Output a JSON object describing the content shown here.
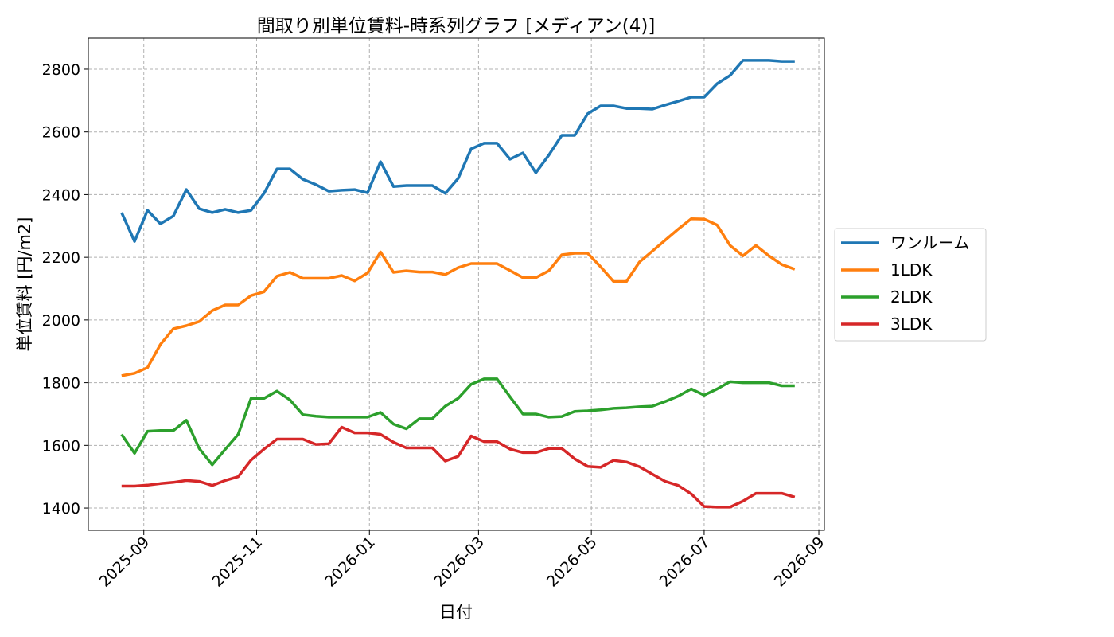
{
  "chart_data": {
    "type": "line",
    "title": "間取り別単位賃料-時系列グラフ [メディアン(4)]",
    "xlabel": "日付",
    "ylabel": "単位賃料 [円/m2]",
    "x": [
      "2025-08-20",
      "2025-08-27",
      "2025-09-03",
      "2025-09-10",
      "2025-09-17",
      "2025-09-24",
      "2025-10-01",
      "2025-10-08",
      "2025-10-15",
      "2025-10-22",
      "2025-10-29",
      "2025-11-05",
      "2025-11-12",
      "2025-11-19",
      "2025-11-26",
      "2025-12-03",
      "2025-12-10",
      "2025-12-17",
      "2025-12-24",
      "2025-12-31",
      "2026-01-07",
      "2026-01-14",
      "2026-01-21",
      "2026-01-28",
      "2026-02-04",
      "2026-02-11",
      "2026-02-18",
      "2026-02-25",
      "2026-03-04",
      "2026-03-11",
      "2026-03-18",
      "2026-03-25",
      "2026-04-01",
      "2026-04-08",
      "2026-04-15",
      "2026-04-22",
      "2026-04-29",
      "2026-05-06",
      "2026-05-13",
      "2026-05-20",
      "2026-05-27",
      "2026-06-03",
      "2026-06-10",
      "2026-06-17",
      "2026-06-24",
      "2026-07-01",
      "2026-07-08",
      "2026-07-15",
      "2026-07-22",
      "2026-07-29",
      "2026-08-05",
      "2026-08-12",
      "2026-08-19"
    ],
    "series": [
      {
        "name": "ワンルーム",
        "color": "#1f77b4",
        "values": [
          2343,
          2251,
          2350,
          2307,
          2332,
          2416,
          2355,
          2343,
          2353,
          2343,
          2350,
          2404,
          2482,
          2482,
          2449,
          2432,
          2411,
          2414,
          2416,
          2406,
          2505,
          2426,
          2429,
          2429,
          2429,
          2404,
          2452,
          2546,
          2564,
          2564,
          2513,
          2533,
          2470,
          2526,
          2589,
          2589,
          2658,
          2683,
          2683,
          2675,
          2675,
          2673,
          2686,
          2698,
          2711,
          2711,
          2754,
          2780,
          2828,
          2828,
          2828,
          2825,
          2825
        ]
      },
      {
        "name": "1LDK",
        "color": "#ff7f0e",
        "values": [
          1822,
          1830,
          1848,
          1922,
          1972,
          1982,
          1995,
          2030,
          2048,
          2048,
          2078,
          2090,
          2140,
          2152,
          2133,
          2133,
          2133,
          2142,
          2125,
          2150,
          2217,
          2152,
          2157,
          2153,
          2153,
          2145,
          2167,
          2180,
          2180,
          2180,
          2158,
          2135,
          2135,
          2157,
          2208,
          2213,
          2213,
          2170,
          2123,
          2123,
          2185,
          2220,
          2255,
          2290,
          2323,
          2322,
          2303,
          2238,
          2205,
          2238,
          2205,
          2177,
          2162
        ]
      },
      {
        "name": "2LDK",
        "color": "#2ca02c",
        "values": [
          1635,
          1575,
          1645,
          1647,
          1647,
          1680,
          1590,
          1538,
          1587,
          1635,
          1750,
          1750,
          1773,
          1745,
          1698,
          1693,
          1690,
          1690,
          1690,
          1690,
          1705,
          1668,
          1653,
          1685,
          1685,
          1725,
          1750,
          1795,
          1812,
          1812,
          1755,
          1700,
          1700,
          1690,
          1692,
          1708,
          1710,
          1713,
          1718,
          1720,
          1723,
          1725,
          1740,
          1757,
          1780,
          1760,
          1780,
          1803,
          1800,
          1800,
          1800,
          1790,
          1790
        ]
      },
      {
        "name": "3LDK",
        "color": "#d62728",
        "values": [
          1470,
          1470,
          1473,
          1478,
          1482,
          1488,
          1485,
          1472,
          1488,
          1500,
          1553,
          1588,
          1620,
          1620,
          1620,
          1603,
          1605,
          1658,
          1640,
          1640,
          1635,
          1610,
          1592,
          1592,
          1592,
          1550,
          1565,
          1630,
          1612,
          1612,
          1588,
          1577,
          1577,
          1590,
          1590,
          1557,
          1533,
          1530,
          1552,
          1547,
          1532,
          1508,
          1485,
          1472,
          1445,
          1405,
          1403,
          1403,
          1422,
          1447,
          1447,
          1447,
          1435
        ]
      }
    ],
    "xlim": [
      "2025-08-02",
      "2026-09-04"
    ],
    "xticks": [
      "2025-09",
      "2025-11",
      "2026-01",
      "2026-03",
      "2026-05",
      "2026-07",
      "2026-09"
    ],
    "ylim": [
      1329,
      2899
    ],
    "yticks": [
      1400,
      1600,
      1800,
      2000,
      2200,
      2400,
      2600,
      2800
    ],
    "grid": true,
    "legend": "center right"
  }
}
